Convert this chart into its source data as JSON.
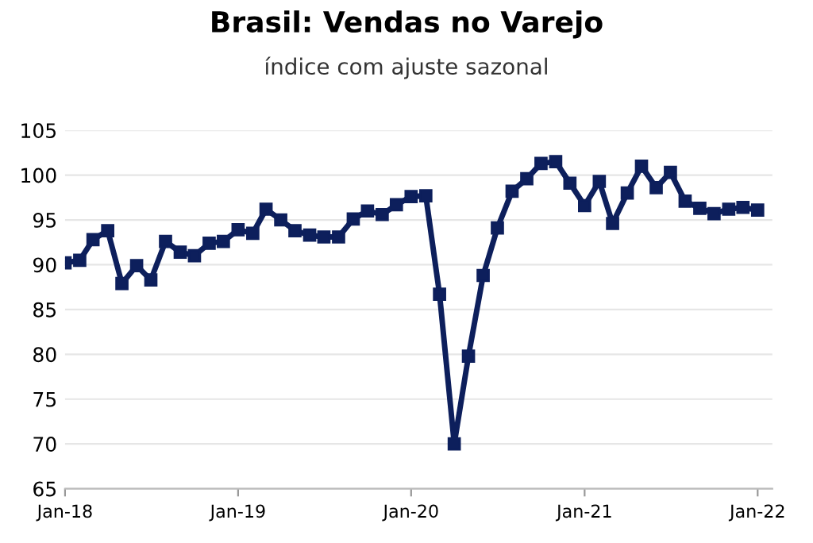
{
  "chart_data": {
    "type": "line",
    "title": "Brasil: Vendas no Varejo",
    "subtitle": "índice com ajuste sazonal",
    "x": [
      "2018-01",
      "2018-02",
      "2018-03",
      "2018-04",
      "2018-05",
      "2018-06",
      "2018-07",
      "2018-08",
      "2018-09",
      "2018-10",
      "2018-11",
      "2018-12",
      "2019-01",
      "2019-02",
      "2019-03",
      "2019-04",
      "2019-05",
      "2019-06",
      "2019-07",
      "2019-08",
      "2019-09",
      "2019-10",
      "2019-11",
      "2019-12",
      "2020-01",
      "2020-02",
      "2020-03",
      "2020-04",
      "2020-05",
      "2020-06",
      "2020-07",
      "2020-08",
      "2020-09",
      "2020-10",
      "2020-11",
      "2020-12",
      "2021-01",
      "2021-02",
      "2021-03",
      "2021-04",
      "2021-05",
      "2021-06",
      "2021-07",
      "2021-08",
      "2021-09",
      "2021-10",
      "2021-11",
      "2021-12",
      "2022-01"
    ],
    "series": [
      {
        "color": "#0d1f5c",
        "values": [
          90.2,
          90.5,
          92.8,
          93.8,
          87.9,
          89.9,
          88.3,
          92.6,
          91.4,
          91.0,
          92.4,
          92.6,
          93.9,
          93.5,
          96.2,
          95.0,
          93.8,
          93.3,
          93.1,
          93.1,
          95.1,
          96.0,
          95.6,
          96.7,
          97.6,
          97.7,
          86.7,
          70.0,
          79.8,
          88.8,
          94.1,
          98.2,
          99.6,
          101.3,
          101.5,
          99.1,
          96.6,
          99.3,
          94.6,
          98.0,
          101.0,
          98.6,
          100.3,
          97.1,
          96.3,
          95.7,
          96.2,
          96.4,
          96.1
        ]
      }
    ],
    "xlim": [
      "2018-01",
      "2022-02"
    ],
    "xticks": [
      {
        "value": "2018-01",
        "label": "Jan-18"
      },
      {
        "value": "2019-01",
        "label": "Jan-19"
      },
      {
        "value": "2020-01",
        "label": "Jan-20"
      },
      {
        "value": "2021-01",
        "label": "Jan-21"
      },
      {
        "value": "2022-01",
        "label": "Jan-22"
      }
    ],
    "ylim": [
      65,
      105
    ],
    "yticks": [
      65,
      70,
      75,
      80,
      85,
      90,
      95,
      100,
      105
    ],
    "grid": "y",
    "marker": "square",
    "line_style": "solid",
    "legend": false
  }
}
